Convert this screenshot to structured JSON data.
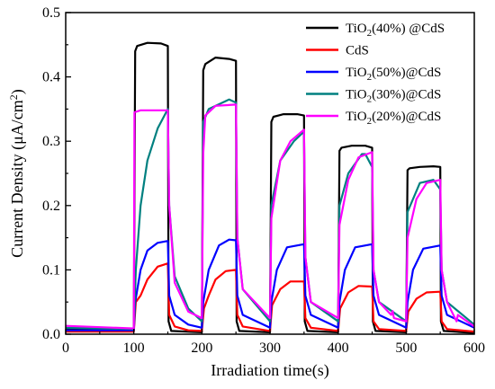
{
  "chart_data": {
    "type": "line",
    "title": "",
    "xlabel": "Irradiation time(s)",
    "ylabel_main": "Current Density (",
    "ylabel_unit_mu": "μ",
    "ylabel_unit_rest": "A/cm",
    "ylabel_sup": "2",
    "ylabel_close": ")",
    "xlim": [
      0,
      600
    ],
    "ylim": [
      0,
      0.5
    ],
    "xticks": [
      0,
      100,
      200,
      300,
      400,
      500,
      600
    ],
    "yticks": [
      0.0,
      0.1,
      0.2,
      0.3,
      0.4,
      0.5
    ],
    "xtick_labels": [
      "0",
      "100",
      "200",
      "300",
      "400",
      "500",
      "600"
    ],
    "ytick_labels": [
      "0.0",
      "0.1",
      "0.2",
      "0.3",
      "0.4",
      "0.5"
    ],
    "grid": false,
    "legend_position": "top-right",
    "series": [
      {
        "name": "TiO2(40%) @CdS",
        "label_parts": [
          "TiO",
          "2",
          "(40%) @CdS"
        ],
        "color": "#000000",
        "points": [
          [
            0,
            0.008
          ],
          [
            100,
            0.006
          ],
          [
            102,
            0.44
          ],
          [
            105,
            0.448
          ],
          [
            120,
            0.453
          ],
          [
            140,
            0.452
          ],
          [
            150,
            0.448
          ],
          [
            151,
            0.02
          ],
          [
            155,
            0.005
          ],
          [
            200,
            0.003
          ],
          [
            202,
            0.41
          ],
          [
            205,
            0.42
          ],
          [
            220,
            0.43
          ],
          [
            240,
            0.428
          ],
          [
            250,
            0.425
          ],
          [
            251,
            0.02
          ],
          [
            255,
            0.005
          ],
          [
            300,
            0.003
          ],
          [
            302,
            0.33
          ],
          [
            305,
            0.338
          ],
          [
            320,
            0.342
          ],
          [
            340,
            0.342
          ],
          [
            350,
            0.34
          ],
          [
            351,
            0.02
          ],
          [
            355,
            0.005
          ],
          [
            400,
            0.003
          ],
          [
            402,
            0.285
          ],
          [
            405,
            0.29
          ],
          [
            420,
            0.293
          ],
          [
            440,
            0.293
          ],
          [
            450,
            0.29
          ],
          [
            451,
            0.02
          ],
          [
            455,
            0.005
          ],
          [
            500,
            0.003
          ],
          [
            502,
            0.255
          ],
          [
            505,
            0.258
          ],
          [
            520,
            0.26
          ],
          [
            540,
            0.261
          ],
          [
            550,
            0.26
          ],
          [
            551,
            0.02
          ],
          [
            555,
            0.005
          ],
          [
            600,
            0.002
          ]
        ]
      },
      {
        "name": "CdS",
        "label_parts": [
          "CdS",
          "",
          ""
        ],
        "color": "#ff0000",
        "points": [
          [
            0,
            0.004
          ],
          [
            100,
            0.004
          ],
          [
            103,
            0.05
          ],
          [
            110,
            0.06
          ],
          [
            120,
            0.085
          ],
          [
            135,
            0.105
          ],
          [
            150,
            0.11
          ],
          [
            152,
            0.03
          ],
          [
            160,
            0.012
          ],
          [
            180,
            0.006
          ],
          [
            200,
            0.005
          ],
          [
            203,
            0.04
          ],
          [
            210,
            0.06
          ],
          [
            220,
            0.085
          ],
          [
            235,
            0.098
          ],
          [
            250,
            0.1
          ],
          [
            252,
            0.03
          ],
          [
            260,
            0.012
          ],
          [
            300,
            0.005
          ],
          [
            303,
            0.045
          ],
          [
            315,
            0.07
          ],
          [
            330,
            0.082
          ],
          [
            350,
            0.082
          ],
          [
            352,
            0.025
          ],
          [
            360,
            0.01
          ],
          [
            400,
            0.005
          ],
          [
            403,
            0.04
          ],
          [
            415,
            0.065
          ],
          [
            430,
            0.075
          ],
          [
            450,
            0.074
          ],
          [
            452,
            0.02
          ],
          [
            460,
            0.008
          ],
          [
            500,
            0.005
          ],
          [
            503,
            0.035
          ],
          [
            515,
            0.055
          ],
          [
            530,
            0.065
          ],
          [
            550,
            0.066
          ],
          [
            552,
            0.02
          ],
          [
            560,
            0.008
          ],
          [
            600,
            0.004
          ]
        ]
      },
      {
        "name": "TiO2(50%)@CdS",
        "label_parts": [
          "TiO",
          "2",
          "(50%)@CdS"
        ],
        "color": "#0000ff",
        "points": [
          [
            0,
            0.006
          ],
          [
            100,
            0.006
          ],
          [
            102,
            0.05
          ],
          [
            110,
            0.1
          ],
          [
            120,
            0.13
          ],
          [
            135,
            0.142
          ],
          [
            150,
            0.145
          ],
          [
            152,
            0.06
          ],
          [
            160,
            0.03
          ],
          [
            180,
            0.015
          ],
          [
            200,
            0.01
          ],
          [
            202,
            0.05
          ],
          [
            210,
            0.1
          ],
          [
            225,
            0.138
          ],
          [
            240,
            0.147
          ],
          [
            250,
            0.146
          ],
          [
            252,
            0.06
          ],
          [
            260,
            0.03
          ],
          [
            300,
            0.01
          ],
          [
            302,
            0.05
          ],
          [
            310,
            0.1
          ],
          [
            325,
            0.135
          ],
          [
            350,
            0.14
          ],
          [
            352,
            0.06
          ],
          [
            360,
            0.03
          ],
          [
            400,
            0.01
          ],
          [
            402,
            0.05
          ],
          [
            410,
            0.1
          ],
          [
            425,
            0.135
          ],
          [
            450,
            0.14
          ],
          [
            452,
            0.06
          ],
          [
            460,
            0.03
          ],
          [
            500,
            0.01
          ],
          [
            502,
            0.05
          ],
          [
            510,
            0.1
          ],
          [
            525,
            0.133
          ],
          [
            550,
            0.138
          ],
          [
            552,
            0.06
          ],
          [
            560,
            0.03
          ],
          [
            600,
            0.01
          ]
        ]
      },
      {
        "name": "TiO2(30%)@CdS",
        "label_parts": [
          "TiO",
          "2",
          "(30%)@CdS"
        ],
        "color": "#008080",
        "points": [
          [
            0,
            0.01
          ],
          [
            100,
            0.008
          ],
          [
            103,
            0.1
          ],
          [
            110,
            0.2
          ],
          [
            120,
            0.27
          ],
          [
            135,
            0.32
          ],
          [
            150,
            0.35
          ],
          [
            152,
            0.2
          ],
          [
            160,
            0.09
          ],
          [
            180,
            0.04
          ],
          [
            200,
            0.02
          ],
          [
            202,
            0.33
          ],
          [
            210,
            0.35
          ],
          [
            240,
            0.365
          ],
          [
            250,
            0.36
          ],
          [
            252,
            0.15
          ],
          [
            260,
            0.07
          ],
          [
            300,
            0.02
          ],
          [
            302,
            0.2
          ],
          [
            315,
            0.27
          ],
          [
            335,
            0.3
          ],
          [
            350,
            0.315
          ],
          [
            352,
            0.12
          ],
          [
            360,
            0.05
          ],
          [
            400,
            0.02
          ],
          [
            402,
            0.2
          ],
          [
            415,
            0.25
          ],
          [
            435,
            0.28
          ],
          [
            440,
            0.28
          ],
          [
            450,
            0.26
          ],
          [
            452,
            0.1
          ],
          [
            460,
            0.05
          ],
          [
            500,
            0.02
          ],
          [
            502,
            0.19
          ],
          [
            520,
            0.235
          ],
          [
            540,
            0.24
          ],
          [
            550,
            0.225
          ],
          [
            552,
            0.1
          ],
          [
            560,
            0.05
          ],
          [
            600,
            0.015
          ]
        ]
      },
      {
        "name": "TiO2(20%)@CdS",
        "label_parts": [
          "TiO",
          "2",
          "(20%)@CdS"
        ],
        "color": "#ff00ff",
        "points": [
          [
            0,
            0.013
          ],
          [
            100,
            0.009
          ],
          [
            101,
            0.345
          ],
          [
            110,
            0.348
          ],
          [
            130,
            0.348
          ],
          [
            150,
            0.348
          ],
          [
            152,
            0.2
          ],
          [
            160,
            0.08
          ],
          [
            180,
            0.035
          ],
          [
            200,
            0.025
          ],
          [
            202,
            0.28
          ],
          [
            205,
            0.34
          ],
          [
            220,
            0.355
          ],
          [
            250,
            0.357
          ],
          [
            252,
            0.15
          ],
          [
            260,
            0.07
          ],
          [
            300,
            0.025
          ],
          [
            302,
            0.18
          ],
          [
            315,
            0.27
          ],
          [
            330,
            0.3
          ],
          [
            350,
            0.318
          ],
          [
            352,
            0.12
          ],
          [
            360,
            0.05
          ],
          [
            400,
            0.025
          ],
          [
            402,
            0.17
          ],
          [
            415,
            0.24
          ],
          [
            430,
            0.275
          ],
          [
            450,
            0.283
          ],
          [
            452,
            0.1
          ],
          [
            460,
            0.05
          ],
          [
            478,
            0.03
          ],
          [
            480,
            0.036
          ],
          [
            482,
            0.025
          ],
          [
            500,
            0.02
          ],
          [
            502,
            0.15
          ],
          [
            515,
            0.21
          ],
          [
            530,
            0.235
          ],
          [
            550,
            0.24
          ],
          [
            552,
            0.1
          ],
          [
            560,
            0.05
          ],
          [
            574,
            0.02
          ],
          [
            576,
            0.03
          ],
          [
            600,
            0.012
          ]
        ]
      }
    ]
  }
}
